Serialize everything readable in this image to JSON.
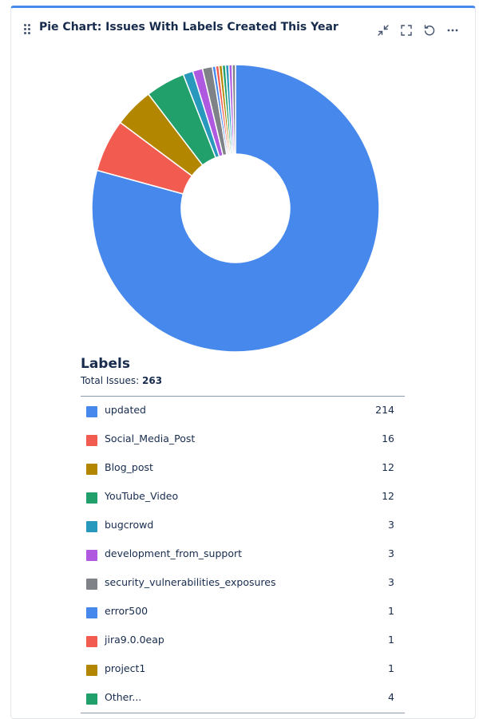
{
  "header": {
    "title": "Pie Chart: Issues With Labels Created This Year",
    "drag_icon": "drag-handle-icon",
    "minimize_icon": "collapse-icon",
    "fullscreen_icon": "fullscreen-icon",
    "refresh_icon": "refresh-icon",
    "more_icon": "more-icon"
  },
  "legend": {
    "title": "Labels",
    "total_label": "Total Issues:",
    "total_value": "263"
  },
  "chart_data": {
    "type": "pie",
    "donut": true,
    "total": 263,
    "slices": [
      {
        "label": "updated",
        "value": 214,
        "color": "#4688ec"
      },
      {
        "label": "Social_Media_Post",
        "value": 16,
        "color": "#f15b50"
      },
      {
        "label": "Blog_post",
        "value": 12,
        "color": "#b38600"
      },
      {
        "label": "YouTube_Video",
        "value": 12,
        "color": "#22a06b"
      },
      {
        "label": "bugcrowd",
        "value": 3,
        "color": "#2898bd"
      },
      {
        "label": "development_from_support",
        "value": 3,
        "color": "#af59e1"
      },
      {
        "label": "security_vulnerabilities_exposures",
        "value": 3,
        "color": "#7f8387"
      },
      {
        "label": "error500",
        "value": 1,
        "color": "#4688ec"
      },
      {
        "label": "jira9.0.0eap",
        "value": 1,
        "color": "#f15b50"
      },
      {
        "label": "project1",
        "value": 1,
        "color": "#b38600"
      },
      {
        "label": "Other...",
        "value": 4,
        "color": "#22a06b"
      }
    ],
    "legend_values": [
      "214",
      "16",
      "12",
      "12",
      "3",
      "3",
      "3",
      "1",
      "1",
      "1",
      "4"
    ],
    "chart_only_slices": [
      {
        "value": 1,
        "color": "#22a06b"
      },
      {
        "value": 1,
        "color": "#2898bd"
      },
      {
        "value": 1,
        "color": "#af59e1"
      },
      {
        "value": 1,
        "color": "#7f8387"
      }
    ]
  }
}
